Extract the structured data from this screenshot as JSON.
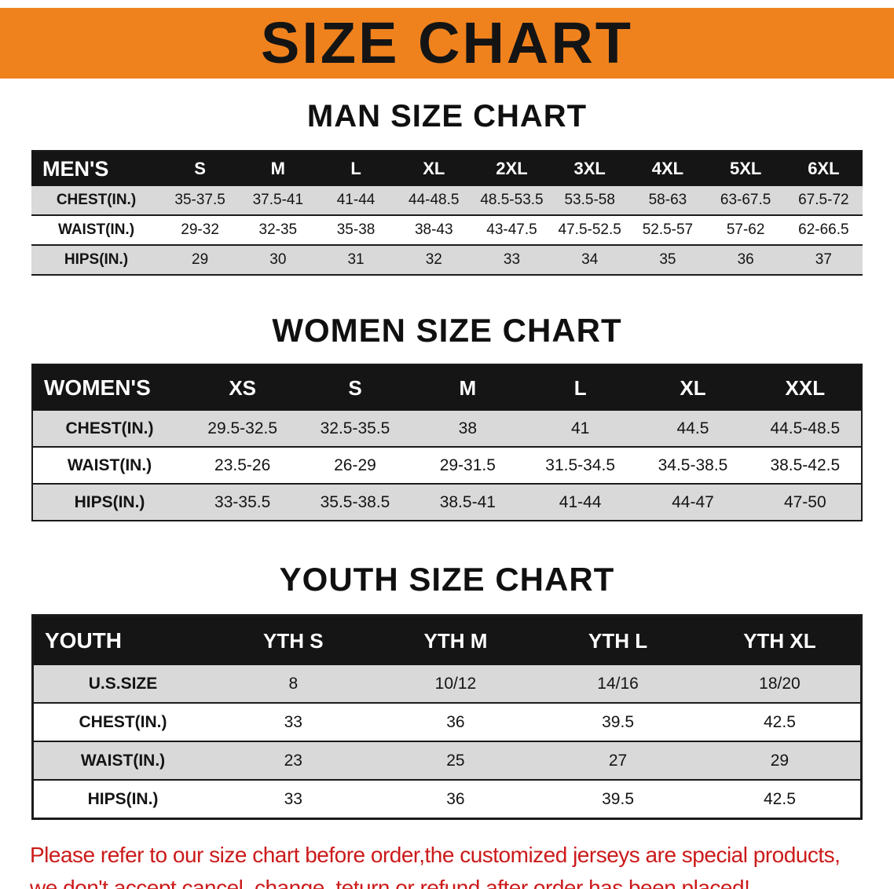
{
  "banner": {
    "title": "SIZE CHART"
  },
  "sections": [
    {
      "heading": "MAN SIZE CHART",
      "table": {
        "header": [
          "MEN'S",
          "S",
          "M",
          "L",
          "XL",
          "2XL",
          "3XL",
          "4XL",
          "5XL",
          "6XL"
        ],
        "rows": [
          [
            "CHEST(IN.)",
            "35-37.5",
            "37.5-41",
            "41-44",
            "44-48.5",
            "48.5-53.5",
            "53.5-58",
            "58-63",
            "63-67.5",
            "67.5-72"
          ],
          [
            "WAIST(IN.)",
            "29-32",
            "32-35",
            "35-38",
            "38-43",
            "43-47.5",
            "47.5-52.5",
            "52.5-57",
            "57-62",
            "62-66.5"
          ],
          [
            "HIPS(IN.)",
            "29",
            "30",
            "31",
            "32",
            "33",
            "34",
            "35",
            "36",
            "37"
          ]
        ]
      }
    },
    {
      "heading": "WOMEN SIZE CHART",
      "table": {
        "header": [
          "WOMEN'S",
          "XS",
          "S",
          "M",
          "L",
          "XL",
          "XXL"
        ],
        "rows": [
          [
            "CHEST(IN.)",
            "29.5-32.5",
            "32.5-35.5",
            "38",
            "41",
            "44.5",
            "44.5-48.5"
          ],
          [
            "WAIST(IN.)",
            "23.5-26",
            "26-29",
            "29-31.5",
            "31.5-34.5",
            "34.5-38.5",
            "38.5-42.5"
          ],
          [
            "HIPS(IN.)",
            "33-35.5",
            "35.5-38.5",
            "38.5-41",
            "41-44",
            "44-47",
            "47-50"
          ]
        ]
      }
    },
    {
      "heading": "YOUTH SIZE CHART",
      "table": {
        "header": [
          "YOUTH",
          "YTH S",
          "YTH M",
          "YTH L",
          "YTH XL"
        ],
        "rows": [
          [
            "U.S.SIZE",
            "8",
            "10/12",
            "14/16",
            "18/20"
          ],
          [
            "CHEST(IN.)",
            "33",
            "36",
            "39.5",
            "42.5"
          ],
          [
            "WAIST(IN.)",
            "23",
            "25",
            "27",
            "29"
          ],
          [
            "HIPS(IN.)",
            "33",
            "36",
            "39.5",
            "42.5"
          ]
        ]
      }
    }
  ],
  "footer": {
    "line1": "Please refer to our size chart before order,the customized jerseys are special products,",
    "line2": "we don't accept cancel, change, teturn or refund after order has been placed!"
  },
  "colors": {
    "banner": "#F0821E",
    "table_header": "#151515",
    "stripe": "#D9D9D9",
    "notice": "#CC1A1A"
  }
}
